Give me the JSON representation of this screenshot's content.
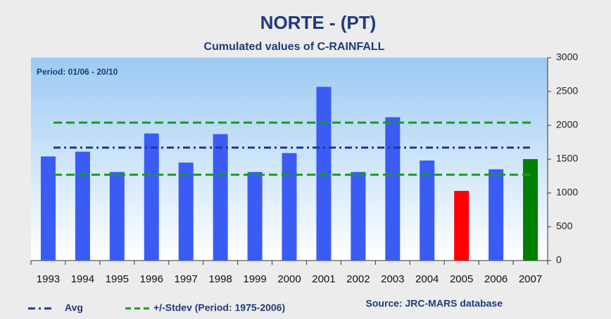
{
  "chart_data": {
    "type": "bar",
    "title": "NORTE - (PT)",
    "subtitle": "Cumulated values of C-RAINFALL",
    "annotation": "Period: 01/06 - 20/10",
    "source": "Source: JRC-MARS database",
    "categories": [
      "1993",
      "1994",
      "1995",
      "1996",
      "1997",
      "1998",
      "1999",
      "2000",
      "2001",
      "2002",
      "2003",
      "2004",
      "2005",
      "2006",
      "2007"
    ],
    "values": [
      1540,
      1610,
      1310,
      1880,
      1450,
      1870,
      1310,
      1590,
      2570,
      1310,
      2120,
      1480,
      1030,
      1350,
      1500
    ],
    "colors": [
      "#3a5cf5",
      "#3a5cf5",
      "#3a5cf5",
      "#3a5cf5",
      "#3a5cf5",
      "#3a5cf5",
      "#3a5cf5",
      "#3a5cf5",
      "#3a5cf5",
      "#3a5cf5",
      "#3a5cf5",
      "#3a5cf5",
      "#ff0000",
      "#3a5cf5",
      "#008000"
    ],
    "reference_lines": [
      {
        "name": "Avg",
        "color": "#1f3a93",
        "style": "dashdot",
        "values": [
          1670
        ]
      },
      {
        "name": "+/-Stdev (Period: 1975-2006)",
        "color": "#1a9a1a",
        "style": "dashed",
        "values": [
          1270,
          2040
        ]
      }
    ],
    "ylim": [
      0,
      3000
    ],
    "yticks": [
      0,
      500,
      1000,
      1500,
      2000,
      2500,
      3000
    ],
    "y_axis_side": "right"
  }
}
